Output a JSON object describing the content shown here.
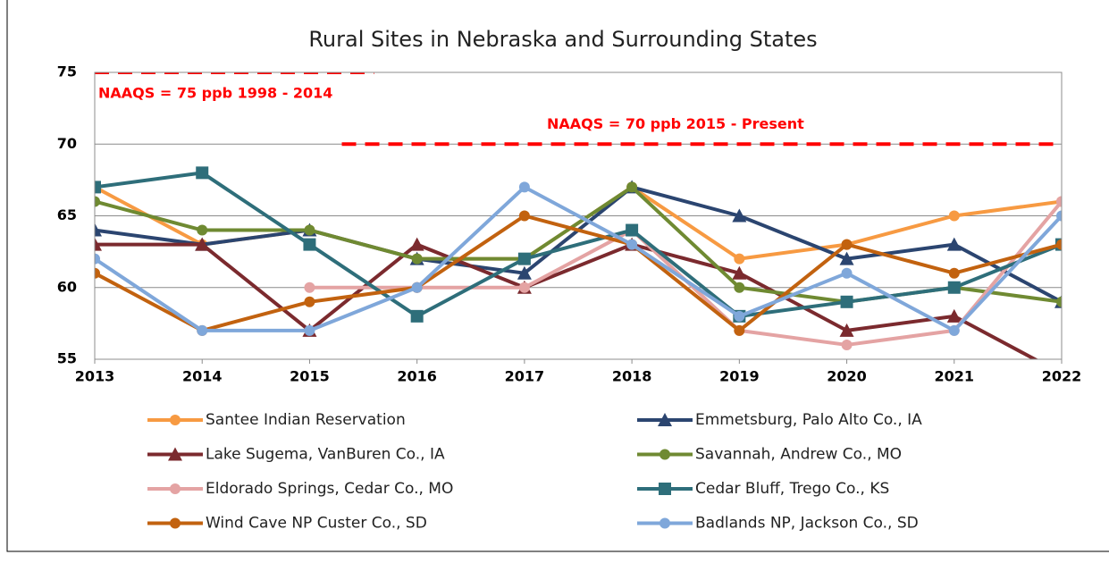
{
  "chart_data": {
    "type": "line",
    "title": "Rural Sites in Nebraska and Surrounding States",
    "x": [
      2013,
      2014,
      2015,
      2016,
      2017,
      2018,
      2019,
      2020,
      2021,
      2022
    ],
    "xlim": [
      2013,
      2022
    ],
    "xticks": [
      2013,
      2014,
      2015,
      2016,
      2017,
      2018,
      2019,
      2020,
      2021,
      2022
    ],
    "ylim": [
      55,
      75
    ],
    "yticks": [
      55,
      60,
      65,
      70,
      75
    ],
    "grid": true,
    "series": [
      {
        "name": "Santee Indian Reservation",
        "color": "#f79a42",
        "marker": "circle",
        "values": [
          67,
          63,
          64,
          62,
          62,
          67,
          62,
          63,
          65,
          66
        ]
      },
      {
        "name": "Emmetsburg, Palo Alto Co., IA",
        "color": "#2b4570",
        "marker": "triangle",
        "values": [
          64,
          63,
          64,
          62,
          61,
          67,
          65,
          62,
          63,
          59
        ]
      },
      {
        "name": "Lake Sugema, VanBuren Co., IA",
        "color": "#7b2a2e",
        "marker": "triangle",
        "values": [
          63,
          63,
          57,
          63,
          60,
          63,
          61,
          57,
          58,
          54
        ]
      },
      {
        "name": "Savannah, Andrew Co., MO",
        "color": "#6f8a32",
        "marker": "circle",
        "values": [
          66,
          64,
          64,
          62,
          62,
          67,
          60,
          59,
          60,
          59
        ]
      },
      {
        "name": "Eldorado Springs, Cedar Co., MO",
        "color": "#e4a3a3",
        "marker": "circle",
        "values": [
          null,
          null,
          60,
          60,
          60,
          64,
          57,
          56,
          57,
          66
        ]
      },
      {
        "name": "Cedar Bluff, Trego Co., KS",
        "color": "#2e6e7a",
        "marker": "square",
        "values": [
          67,
          68,
          63,
          58,
          62,
          64,
          58,
          59,
          60,
          63
        ]
      },
      {
        "name": "Wind Cave NP Custer Co., SD",
        "color": "#c2620f",
        "marker": "circle",
        "values": [
          61,
          57,
          59,
          60,
          65,
          63,
          57,
          63,
          61,
          63
        ]
      },
      {
        "name": "Badlands NP, Jackson Co., SD",
        "color": "#7fa7da",
        "marker": "circle",
        "values": [
          62,
          57,
          57,
          60,
          67,
          63,
          58,
          61,
          57,
          65
        ]
      }
    ],
    "reference_lines": [
      {
        "label": "NAAQS = 75 ppb 1998 - 2014",
        "value": 75,
        "x": [
          2013,
          2015.6
        ],
        "color": "#ff0000"
      },
      {
        "label": "NAAQS = 70 ppb 2015 - Present",
        "value": 70,
        "x": [
          2015.3,
          2022
        ],
        "color": "#ff0000"
      }
    ]
  }
}
